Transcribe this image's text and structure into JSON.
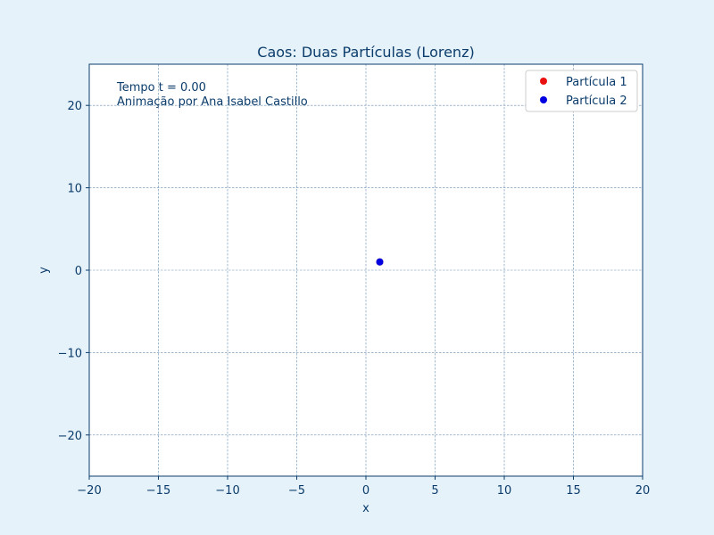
{
  "chart_data": {
    "type": "scatter",
    "title": "Caos: Duas Partículas (Lorenz)",
    "xlabel": "x",
    "ylabel": "y",
    "xlim": [
      -20,
      20
    ],
    "ylim": [
      -25,
      25
    ],
    "xticks": [
      -20,
      -15,
      -10,
      -5,
      0,
      5,
      10,
      15,
      20
    ],
    "yticks": [
      -20,
      -10,
      0,
      10,
      20
    ],
    "xtick_labels": [
      "−20",
      "−15",
      "−10",
      "−5",
      "0",
      "5",
      "10",
      "15",
      "20"
    ],
    "ytick_labels": [
      "−20",
      "−10",
      "0",
      "10",
      "20"
    ],
    "grid": true,
    "legend_position": "top-right",
    "annotations": [
      "Tempo t = 0.00",
      "Animação por Ana Isabel Castillo"
    ],
    "series": [
      {
        "name": "Partícula 1",
        "color": "#e8110f",
        "points": [
          {
            "x": 1.0,
            "y": 1.0
          }
        ]
      },
      {
        "name": "Partícula 2",
        "color": "#0000e0",
        "points": [
          {
            "x": 1.0,
            "y": 1.0
          }
        ]
      }
    ]
  },
  "colors": {
    "page_background": "#e6f2fa",
    "plot_background": "#ffffff",
    "text": "#0b3c6b",
    "grid": "#6a8fb0"
  }
}
